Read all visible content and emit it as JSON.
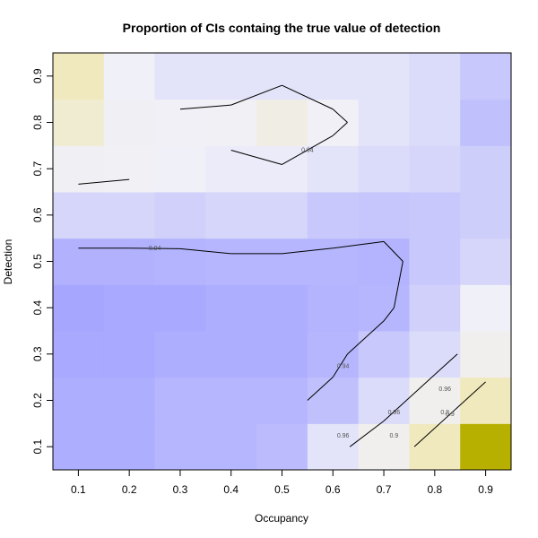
{
  "chart_data": {
    "type": "heatmap",
    "title": "Proportion of CIs containg the true value of detection",
    "xlabel": "Occupancy",
    "ylabel": "Detection",
    "x": [
      0.1,
      0.2,
      0.3,
      0.4,
      0.5,
      0.6,
      0.7,
      0.8,
      0.9
    ],
    "y": [
      0.1,
      0.2,
      0.3,
      0.4,
      0.5,
      0.6,
      0.7,
      0.8,
      0.9
    ],
    "xlim": [
      0.05,
      0.95
    ],
    "ylim": [
      0.05,
      0.95
    ],
    "x_ticks": [
      "0.1",
      "0.2",
      "0.3",
      "0.4",
      "0.5",
      "0.6",
      "0.7",
      "0.8",
      "0.9"
    ],
    "y_ticks": [
      "0.1",
      "0.2",
      "0.3",
      "0.4",
      "0.5",
      "0.6",
      "0.7",
      "0.8",
      "0.9"
    ],
    "z": [
      [
        0.965,
        0.965,
        0.962,
        0.962,
        0.96,
        0.945,
        0.93,
        0.88,
        0.8
      ],
      [
        0.965,
        0.965,
        0.962,
        0.962,
        0.962,
        0.958,
        0.948,
        0.93,
        0.88
      ],
      [
        0.967,
        0.967,
        0.965,
        0.965,
        0.965,
        0.962,
        0.955,
        0.948,
        0.93
      ],
      [
        0.968,
        0.967,
        0.967,
        0.965,
        0.965,
        0.963,
        0.962,
        0.952,
        0.94
      ],
      [
        0.964,
        0.964,
        0.963,
        0.962,
        0.962,
        0.962,
        0.963,
        0.955,
        0.95
      ],
      [
        0.95,
        0.95,
        0.952,
        0.95,
        0.95,
        0.955,
        0.956,
        0.955,
        0.953
      ],
      [
        0.935,
        0.937,
        0.94,
        0.942,
        0.942,
        0.945,
        0.948,
        0.95,
        0.953
      ],
      [
        0.9,
        0.935,
        0.938,
        0.937,
        0.92,
        0.938,
        0.945,
        0.948,
        0.958
      ],
      [
        0.88,
        0.94,
        0.945,
        0.945,
        0.945,
        0.945,
        0.945,
        0.948,
        0.955
      ]
    ],
    "contour_levels": [
      0.8,
      0.9,
      0.94,
      0.96
    ],
    "contour_labels": [
      "0.9",
      "0.94",
      "0.94",
      "0.96",
      "0.96",
      "0.96",
      "0.94",
      "0.9",
      "0.8"
    ],
    "color_scale": {
      "low": "#b8b000",
      "mid_low": "#f0e6a0",
      "mid": "#f0f0f8",
      "high": "#a6a6ff"
    }
  }
}
